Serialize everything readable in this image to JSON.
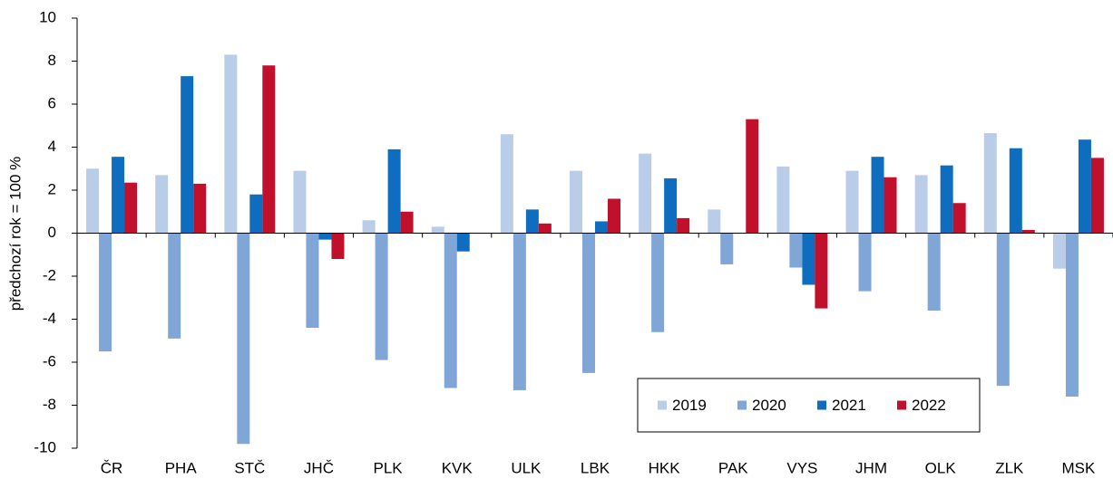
{
  "chart_data": {
    "type": "bar",
    "y_label": "předchozí rok = 100 %",
    "categories": [
      "ČR",
      "PHA",
      "STČ",
      "JHČ",
      "PLK",
      "KVK",
      "ULK",
      "LBK",
      "HKK",
      "PAK",
      "VYS",
      "JHM",
      "OLK",
      "ZLK",
      "MSK"
    ],
    "series": [
      {
        "name": "2019",
        "color": "#b9cde8",
        "values": [
          3.0,
          2.7,
          8.3,
          2.9,
          0.6,
          0.3,
          4.6,
          2.9,
          3.7,
          1.1,
          3.1,
          2.9,
          2.7,
          4.65,
          -1.65
        ]
      },
      {
        "name": "2020",
        "color": "#7fa6d6",
        "values": [
          -5.5,
          -4.9,
          -9.8,
          -4.4,
          -5.9,
          -7.2,
          -7.3,
          -6.5,
          -4.6,
          -1.45,
          -1.6,
          -2.7,
          -3.6,
          -7.1,
          -7.6
        ]
      },
      {
        "name": "2021",
        "color": "#0e6dbf",
        "values": [
          3.55,
          7.3,
          1.8,
          -0.3,
          3.9,
          -0.85,
          1.1,
          0.55,
          2.55,
          0,
          -2.4,
          3.55,
          3.15,
          3.95,
          4.35
        ]
      },
      {
        "name": "2022",
        "color": "#c1102b",
        "values": [
          2.35,
          2.3,
          7.8,
          -1.2,
          1.0,
          0,
          0.45,
          1.6,
          0.7,
          5.3,
          -3.5,
          2.6,
          1.4,
          0.15,
          3.5
        ]
      }
    ],
    "ylim": [
      -10,
      10
    ],
    "yticks": [
      -10,
      -8,
      -6,
      -4,
      -2,
      0,
      2,
      4,
      6,
      8,
      10
    ],
    "legend": "lower right"
  }
}
